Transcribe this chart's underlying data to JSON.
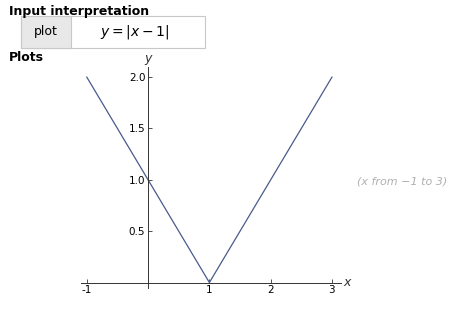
{
  "title_section": "Input interpretation",
  "plot_label": "plot",
  "equation": "y = |x - 1|",
  "plots_label": "Plots",
  "annotation": "(x from −1 to 3)",
  "x_min": -1,
  "x_max": 3,
  "y_min": 0,
  "y_max": 2.0,
  "x_ticks": [
    -1,
    1,
    2,
    3
  ],
  "y_ticks": [
    0.5,
    1.0,
    1.5,
    2.0
  ],
  "line_color": "#4a5a8c",
  "background_color": "#ffffff",
  "axis_color": "#333333",
  "annotation_color": "#b0b0b0",
  "xlabel": "x",
  "ylabel": "y",
  "fig_width": 4.61,
  "fig_height": 3.11,
  "dpi": 100,
  "plot_cell_color": "#e8e8e8",
  "border_color": "#c8c8c8",
  "header_fontsize": 9,
  "equation_fontsize": 10,
  "tick_fontsize": 7.5,
  "annotation_fontsize": 8
}
